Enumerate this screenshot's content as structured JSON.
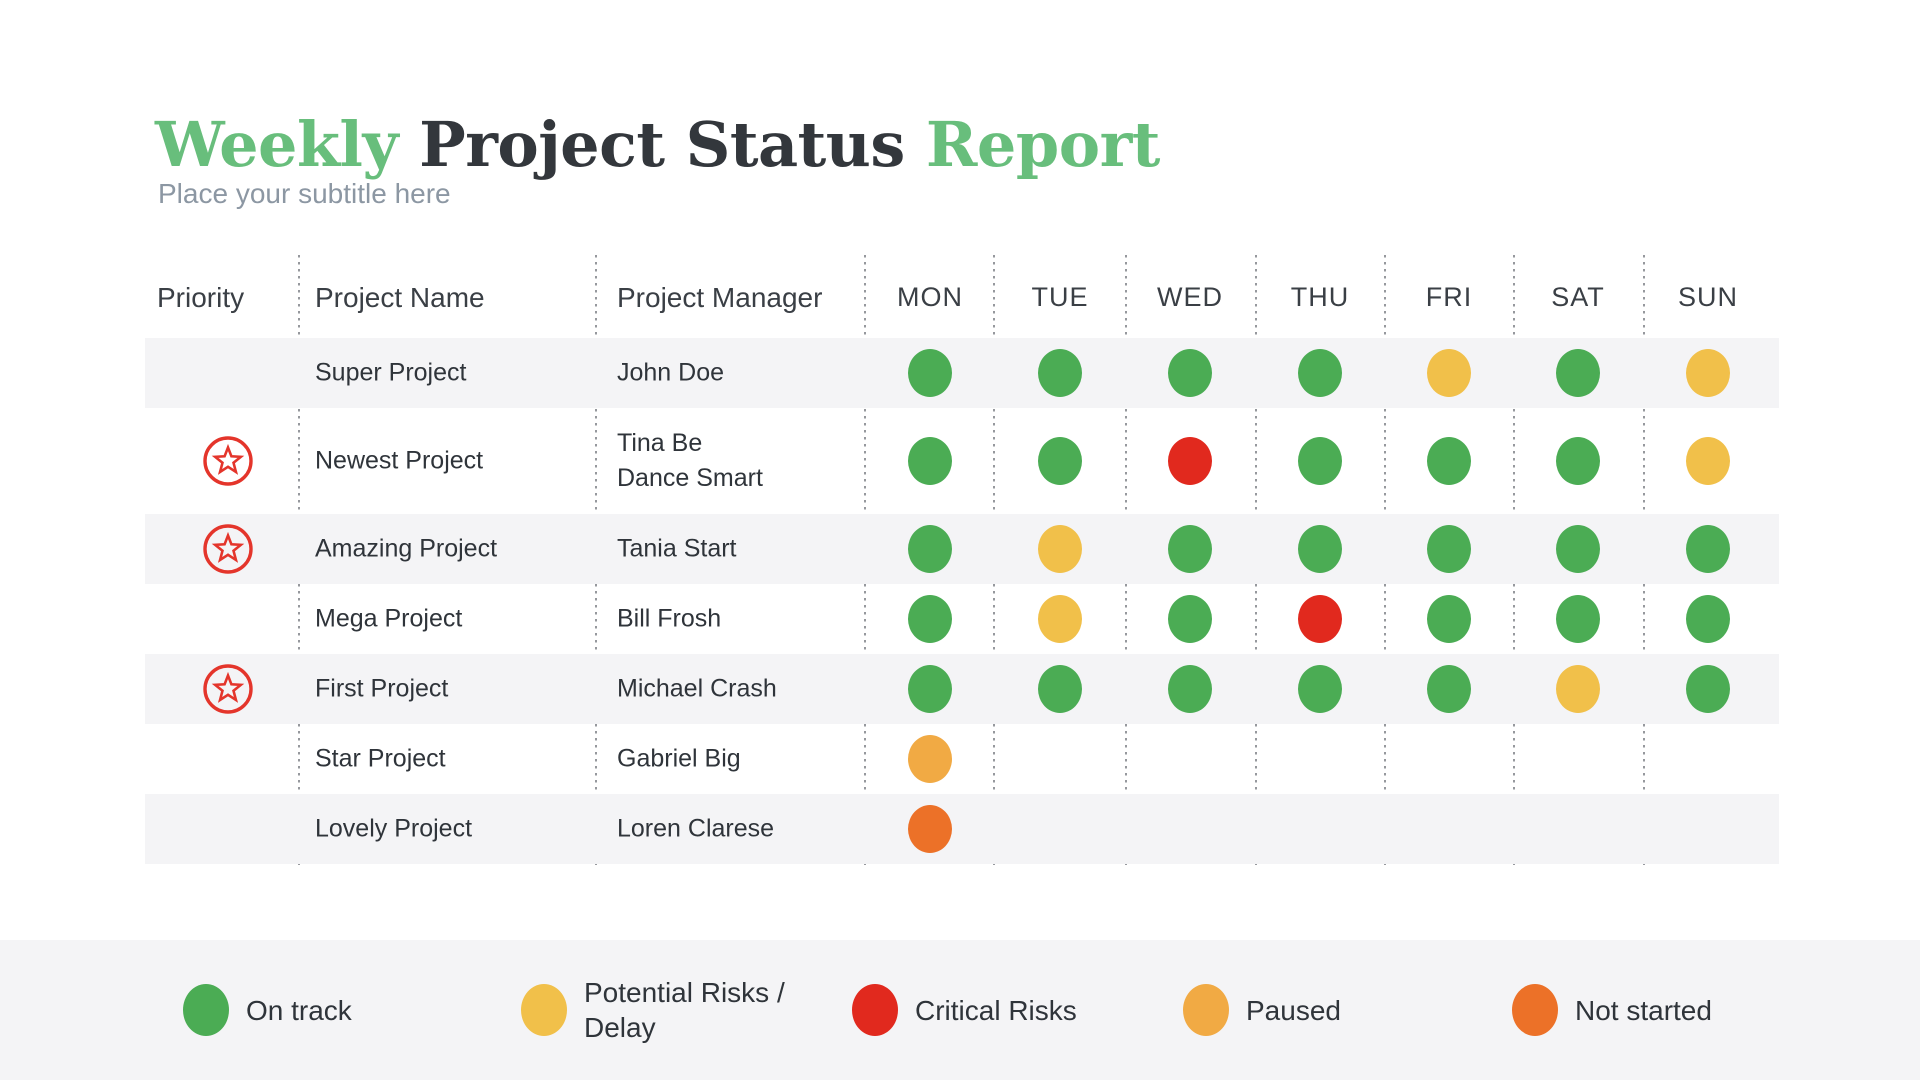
{
  "header": {
    "title_parts": [
      {
        "text": "Weekly ",
        "color": "green"
      },
      {
        "text": "Project Status ",
        "color": "dark"
      },
      {
        "text": "Report",
        "color": "green"
      }
    ],
    "subtitle": "Place your subtitle here"
  },
  "table": {
    "columns": {
      "priority": "Priority",
      "project_name": "Project Name",
      "project_manager": "Project Manager",
      "days": [
        "MON",
        "TUE",
        "WED",
        "THU",
        "FRI",
        "SAT",
        "SUN"
      ]
    },
    "rows": [
      {
        "priority": false,
        "name": "Super Project",
        "manager": "John Doe",
        "statuses": [
          "on_track",
          "on_track",
          "on_track",
          "on_track",
          "potential_risk",
          "on_track",
          "potential_risk"
        ]
      },
      {
        "priority": true,
        "name": "Newest Project",
        "manager": "Tina Be\nDance Smart",
        "statuses": [
          "on_track",
          "on_track",
          "critical_risk",
          "on_track",
          "on_track",
          "on_track",
          "potential_risk"
        ]
      },
      {
        "priority": true,
        "name": "Amazing Project",
        "manager": "Tania Start",
        "statuses": [
          "on_track",
          "potential_risk",
          "on_track",
          "on_track",
          "on_track",
          "on_track",
          "on_track"
        ]
      },
      {
        "priority": false,
        "name": "Mega Project",
        "manager": "Bill Frosh",
        "statuses": [
          "on_track",
          "potential_risk",
          "on_track",
          "critical_risk",
          "on_track",
          "on_track",
          "on_track"
        ]
      },
      {
        "priority": true,
        "name": "First Project",
        "manager": "Michael Crash",
        "statuses": [
          "on_track",
          "on_track",
          "on_track",
          "on_track",
          "on_track",
          "potential_risk",
          "on_track"
        ]
      },
      {
        "priority": false,
        "name": "Star Project",
        "manager": "Gabriel Big",
        "statuses": [
          "paused",
          null,
          null,
          null,
          null,
          null,
          null
        ]
      },
      {
        "priority": false,
        "name": "Lovely Project",
        "manager": "Loren Clarese",
        "statuses": [
          "not_started",
          null,
          null,
          null,
          null,
          null,
          null
        ]
      }
    ]
  },
  "legend": {
    "items": [
      {
        "label": "On track",
        "status": "on_track"
      },
      {
        "label": "Potential Risks /\nDelay",
        "status": "potential_risk"
      },
      {
        "label": "Critical Risks",
        "status": "critical_risk"
      },
      {
        "label": "Paused",
        "status": "paused"
      },
      {
        "label": "Not started",
        "status": "not_started"
      }
    ]
  },
  "colors": {
    "on_track": "#4BAC54",
    "potential_risk": "#F1C04A",
    "critical_risk": "#E1291E",
    "paused": "#F1AA44",
    "not_started": "#EC7128",
    "title_green": "#68BE7C",
    "title_dark": "#33373C",
    "priority_red": "#E4352B",
    "row_stripe": "#F4F4F6"
  }
}
